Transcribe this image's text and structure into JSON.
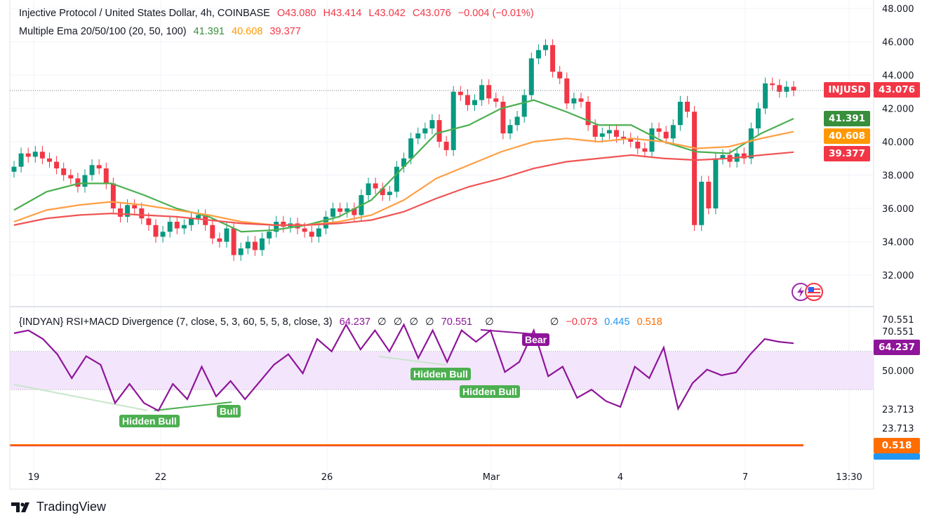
{
  "header": {
    "symbol_title": "Injective Protocol / United States Dollar, 4h, COINBASE",
    "open": "O43.080",
    "high": "H43.414",
    "low": "L43.042",
    "close": "C43.076",
    "change": "−0.004 (−0.01%)",
    "ema_title": "Multiple Ema 20/50/100 (20, 50, 100)",
    "ema20": "41.391",
    "ema50": "40.608",
    "ema100": "39.377"
  },
  "indicator": {
    "title": "{INDYAN} RSI+MACD Divergence (7, close, 5, 3, 60, 5, 5, 8, close, 3)",
    "rsi_value": "64.237",
    "na_values": [
      "∅",
      "∅",
      "∅",
      "∅"
    ],
    "overlap_value": "70.551",
    "na_value2": "∅",
    "na_value3": "∅",
    "macd": "−0.073",
    "signal": "0.445",
    "hist": "0.518"
  },
  "price_tags": {
    "symbol": "INJUSD",
    "last": "43.076",
    "ema20": "41.391",
    "ema50": "40.608",
    "ema100": "39.377"
  },
  "rsi_axis": {
    "labels": [
      "70.551",
      "70.551",
      "50.000",
      "23.713",
      "23.713"
    ],
    "rsi_tag": "64.237",
    "macd_tag": "0.518"
  },
  "divergence_labels": [
    "Hidden Bull",
    "Bull",
    "Hidden Bull",
    "Hidden Bull",
    "Bear"
  ],
  "branding": {
    "name": "TradingView"
  },
  "colors": {
    "up": "#089981",
    "down": "#f23645",
    "ema20": "#4caf50",
    "ema50": "#ff9f43",
    "ema100": "#f05454",
    "rsi": "#8e1599",
    "band": "#f3e5fc",
    "macd_tag": "#ff6d00",
    "signal_tag": "#2196f3"
  },
  "chart_data": {
    "type": "candlestick",
    "interval": "4h",
    "price_axis": {
      "ticks": [
        "48.000",
        "46.000",
        "44.000",
        "42.000",
        "40.000",
        "38.000",
        "36.000",
        "34.000",
        "32.000"
      ],
      "range": [
        32,
        48
      ]
    },
    "x_axis": {
      "ticks": [
        "19",
        "22",
        "26",
        "Mar",
        "4",
        "7",
        "13:30"
      ]
    },
    "closes": [
      38.5,
      39.3,
      39.1,
      39.4,
      39.0,
      38.8,
      38.4,
      38.0,
      37.8,
      37.3,
      38.0,
      38.6,
      38.4,
      37.5,
      36.0,
      35.5,
      36.2,
      36.0,
      35.4,
      35.0,
      34.3,
      34.6,
      35.2,
      34.8,
      35.0,
      35.4,
      35.6,
      35.0,
      34.2,
      34.0,
      34.8,
      33.2,
      33.6,
      34.0,
      33.5,
      34.2,
      34.6,
      35.2,
      34.9,
      35.1,
      34.8,
      34.6,
      34.3,
      34.8,
      35.5,
      36.0,
      35.8,
      36.0,
      35.6,
      36.8,
      37.5,
      37.2,
      36.8,
      37.0,
      38.5,
      39.0,
      40.2,
      40.5,
      40.8,
      41.3,
      40.0,
      39.5,
      43.0,
      42.8,
      42.2,
      42.5,
      43.4,
      42.6,
      42.4,
      40.5,
      41.0,
      41.5,
      42.8,
      45.0,
      45.5,
      45.8,
      44.2,
      43.8,
      42.3,
      42.6,
      42.4,
      41.0,
      40.3,
      40.5,
      40.7,
      40.3,
      40.2,
      40.0,
      39.6,
      39.4,
      40.8,
      40.6,
      40.2,
      41.0,
      42.4,
      41.8,
      35.0,
      37.6,
      36.0,
      39.0,
      39.2,
      38.8,
      39.3,
      39.0,
      40.8,
      42.0,
      43.5,
      43.4,
      43.0,
      43.3,
      43.076
    ],
    "ema_series": [
      {
        "name": "EMA 20",
        "values": [
          35.9,
          37.0,
          37.5,
          37.5,
          36.8,
          36.0,
          35.5,
          34.6,
          34.7,
          35.0,
          35.5,
          36.5,
          38.5,
          40.5,
          41.0,
          42.0,
          42.5,
          41.8,
          41.0,
          41.0,
          40.0,
          39.4,
          39.3,
          40.5,
          41.391
        ]
      },
      {
        "name": "EMA 50",
        "values": [
          35.2,
          35.9,
          36.2,
          36.4,
          36.2,
          35.9,
          35.6,
          35.2,
          35.0,
          35.0,
          35.2,
          35.6,
          36.5,
          37.8,
          38.6,
          39.4,
          40.0,
          40.2,
          40.0,
          40.2,
          40.0,
          39.6,
          39.7,
          40.2,
          40.608
        ]
      },
      {
        "name": "EMA 100",
        "values": [
          35.0,
          35.4,
          35.6,
          35.7,
          35.6,
          35.5,
          35.3,
          35.1,
          35.0,
          35.0,
          35.1,
          35.3,
          35.8,
          36.6,
          37.3,
          37.8,
          38.4,
          38.8,
          39.0,
          39.2,
          39.0,
          38.9,
          39.0,
          39.2,
          39.377
        ]
      }
    ],
    "rsi": {
      "values": [
        69.5,
        71,
        66.5,
        58.5,
        46,
        57.5,
        53,
        33,
        43,
        33,
        29,
        43,
        35,
        52,
        36.5,
        44.5,
        35,
        44,
        53,
        58.5,
        48.5,
        66.5,
        60,
        74,
        61,
        71,
        60,
        74,
        56.5,
        71,
        54.5,
        71,
        65,
        71,
        49.2,
        54.5,
        71,
        47,
        52,
        35.7,
        40,
        34,
        31,
        52,
        46,
        62,
        30,
        43.4,
        50.5,
        47.5,
        49,
        58.5,
        66.5,
        65,
        64.237
      ],
      "band": [
        40,
        60
      ],
      "midline": 50
    },
    "macd_last": 0.518
  }
}
